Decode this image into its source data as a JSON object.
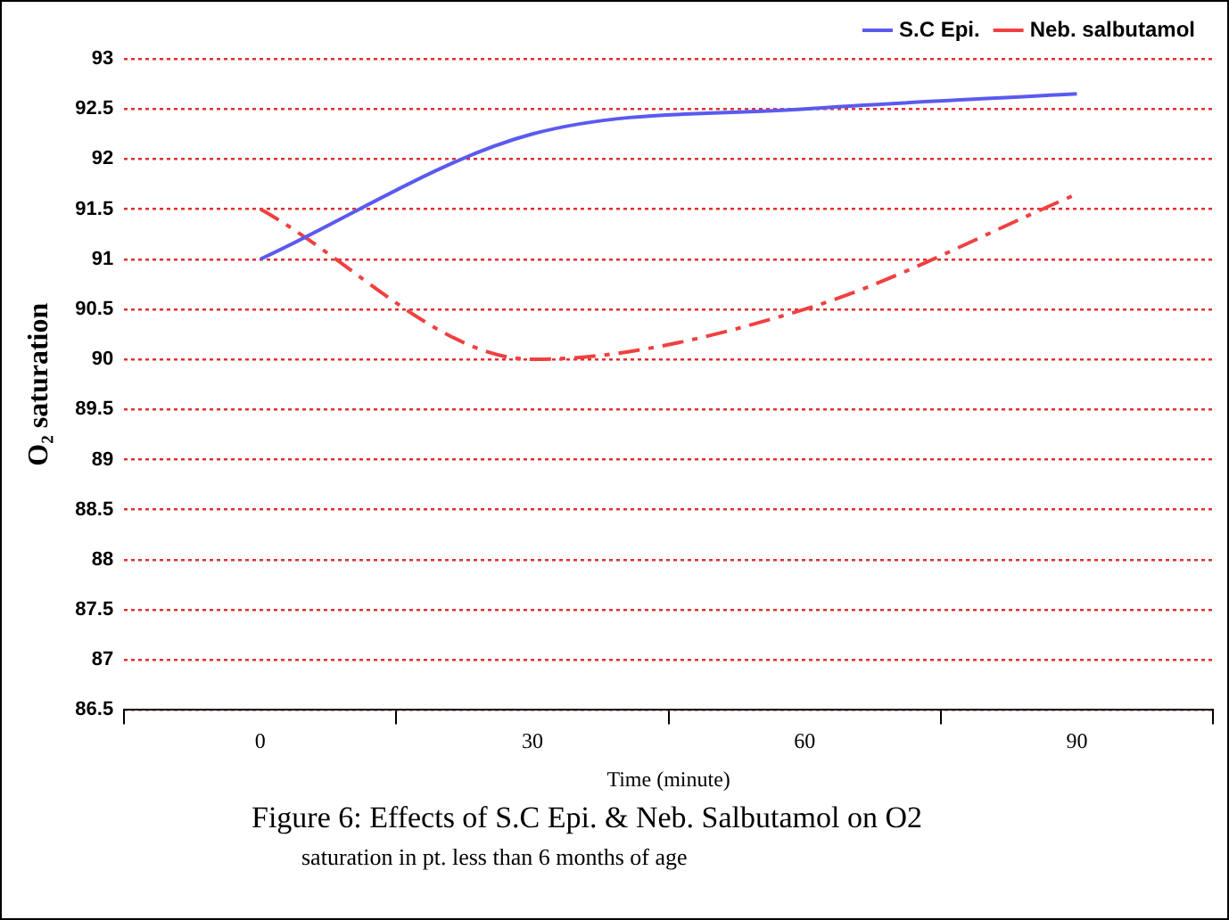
{
  "chart_data": {
    "type": "line",
    "xlabel": "Time (minute)",
    "ylabel": "O₂ saturation",
    "categories": [
      "0",
      "30",
      "60",
      "90"
    ],
    "series": [
      {
        "name": "S.C Epi.",
        "color": "#5a5af0",
        "values": [
          91,
          92.25,
          92.5,
          92.65
        ],
        "line_style": "solid"
      },
      {
        "name": "Neb. salbutamol",
        "color": "#f04040",
        "values": [
          91.5,
          90,
          90.5,
          91.65
        ],
        "line_style": "dashed"
      }
    ],
    "ylim": [
      86.5,
      93
    ],
    "yticks": [
      86.5,
      87,
      87.5,
      88,
      88.5,
      89,
      89.5,
      90,
      90.5,
      91,
      91.5,
      92,
      92.5,
      93
    ],
    "grid": "y",
    "legend": "top right",
    "marker": "none",
    "annotations": [
      "Figure 6: Effects of S.C Epi. & Neb. Salbutamol on  O2",
      "saturation in pt. less than 6 months of age"
    ]
  }
}
